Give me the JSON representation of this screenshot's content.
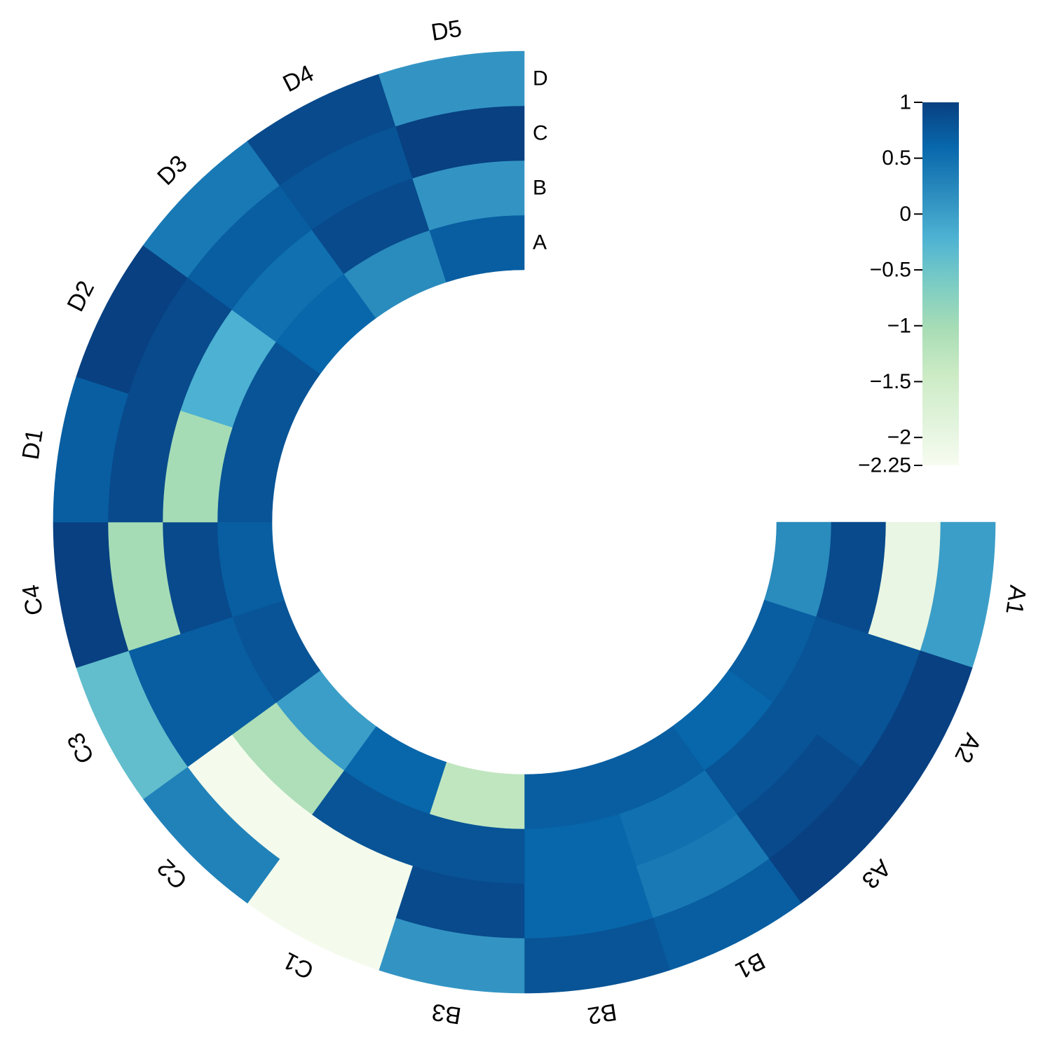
{
  "chart_data": {
    "type": "heatmap",
    "layout": "circular",
    "segments": [
      "A1",
      "A2",
      "A3",
      "B1",
      "B2",
      "B3",
      "C1",
      "C2",
      "C3",
      "C4",
      "D1",
      "D2",
      "D3",
      "D4",
      "D5"
    ],
    "rings": [
      "A",
      "B",
      "C",
      "D"
    ],
    "values": [
      [
        0.2,
        0.7,
        0.6,
        0.7,
        0.7,
        -1.3,
        0.6,
        0.0,
        0.8,
        0.7,
        0.8,
        0.8,
        0.6,
        0.2,
        0.7
      ],
      [
        0.9,
        0.8,
        0.8,
        0.5,
        0.6,
        0.8,
        0.8,
        -1.1,
        0.7,
        0.9,
        -1.0,
        -0.2,
        0.5,
        0.9,
        0.1
      ],
      [
        -2.0,
        0.8,
        0.9,
        0.4,
        0.6,
        0.9,
        -2.2,
        -2.2,
        0.7,
        -1.0,
        0.9,
        0.9,
        0.7,
        0.8,
        1.0
      ],
      [
        0.0,
        1.0,
        1.0,
        0.7,
        0.8,
        0.1,
        -2.2,
        0.3,
        -0.4,
        1.0,
        0.7,
        1.0,
        0.4,
        0.9,
        0.1
      ]
    ],
    "colorbar": {
      "min": -2.25,
      "max": 1,
      "ticks": [
        1,
        0.5,
        0,
        -0.5,
        -1,
        -1.5,
        -2,
        -2.25
      ],
      "tick_labels": [
        "1",
        "0.5",
        "0",
        "−0.5",
        "−1",
        "−1.5",
        "−2",
        "−2.25"
      ],
      "palette": "GnBu",
      "colors": [
        "#f7fcf0",
        "#e0f3db",
        "#ccebc5",
        "#a8ddb5",
        "#7bccc4",
        "#4eb3d3",
        "#2b8cbe",
        "#0868ac",
        "#084081"
      ]
    },
    "legend_position": "top-right",
    "start_angle": "right (3 o'clock)",
    "direction": "clockwise",
    "coverage": "270 degrees"
  }
}
